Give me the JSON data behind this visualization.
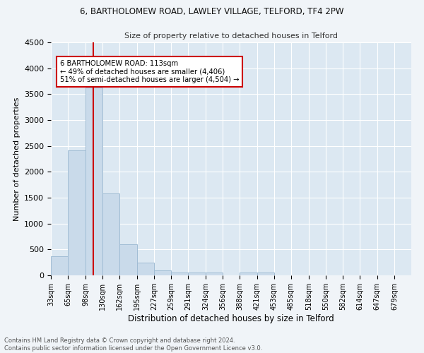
{
  "title1": "6, BARTHOLOMEW ROAD, LAWLEY VILLAGE, TELFORD, TF4 2PW",
  "title2": "Size of property relative to detached houses in Telford",
  "xlabel": "Distribution of detached houses by size in Telford",
  "ylabel": "Number of detached properties",
  "bin_labels": [
    "33sqm",
    "65sqm",
    "98sqm",
    "130sqm",
    "162sqm",
    "195sqm",
    "227sqm",
    "259sqm",
    "291sqm",
    "324sqm",
    "356sqm",
    "388sqm",
    "421sqm",
    "453sqm",
    "485sqm",
    "518sqm",
    "550sqm",
    "582sqm",
    "614sqm",
    "647sqm",
    "679sqm"
  ],
  "bin_edges": [
    33,
    65,
    98,
    130,
    162,
    195,
    227,
    259,
    291,
    324,
    356,
    388,
    421,
    453,
    485,
    518,
    550,
    582,
    614,
    647,
    679
  ],
  "bar_heights": [
    370,
    2420,
    3630,
    1580,
    600,
    240,
    100,
    60,
    55,
    55,
    0,
    55,
    55,
    0,
    0,
    0,
    0,
    0,
    0,
    0
  ],
  "bar_color": "#c9daea",
  "bar_edge_color": "#a0bcd4",
  "bg_color": "#dce8f2",
  "grid_color": "#ffffff",
  "vline_x": 113,
  "vline_color": "#cc0000",
  "annotation_text": "6 BARTHOLOMEW ROAD: 113sqm\n← 49% of detached houses are smaller (4,406)\n51% of semi-detached houses are larger (4,504) →",
  "annotation_box_color": "#ffffff",
  "annotation_box_edge": "#cc0000",
  "footer_text": "Contains HM Land Registry data © Crown copyright and database right 2024.\nContains public sector information licensed under the Open Government Licence v3.0.",
  "ylim": [
    0,
    4500
  ],
  "yticks": [
    0,
    500,
    1000,
    1500,
    2000,
    2500,
    3000,
    3500,
    4000,
    4500
  ]
}
